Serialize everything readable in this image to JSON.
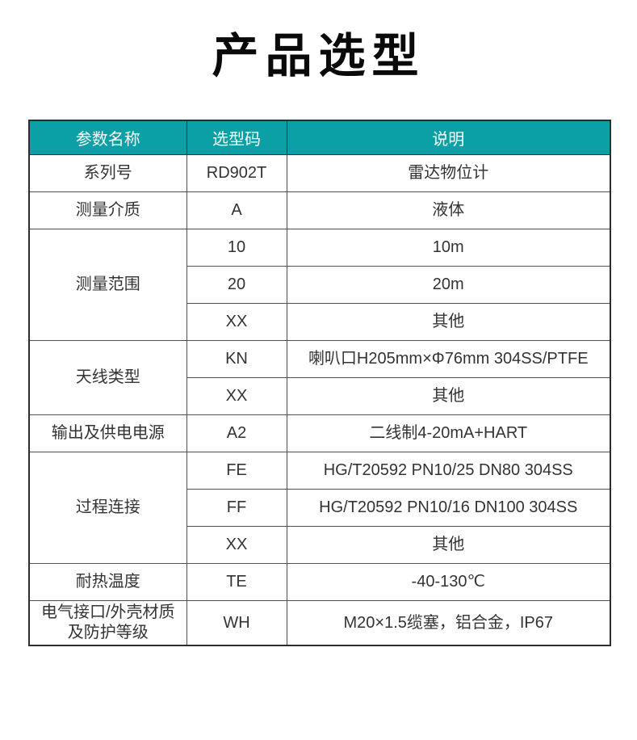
{
  "page": {
    "title": "产品选型"
  },
  "colors": {
    "accent_teal": "#0BA0A6",
    "header_text": "#FFFFFF",
    "body_text": "#333333",
    "grid_line": "#4F4F4F",
    "outer_border": "#2D2D2D",
    "title_color": "#0A0A0A",
    "background": "#FFFFFF"
  },
  "table": {
    "headers": [
      "参数名称",
      "选型码",
      "说明"
    ],
    "groups": [
      {
        "param": "系列号",
        "options": [
          {
            "code": "RD902T",
            "desc": "雷达物位计"
          }
        ]
      },
      {
        "param": "测量介质",
        "options": [
          {
            "code": "A",
            "desc": "液体"
          }
        ]
      },
      {
        "param": "测量范围",
        "options": [
          {
            "code": "10",
            "desc": "10m"
          },
          {
            "code": "20",
            "desc": "20m"
          },
          {
            "code": "XX",
            "desc": "其他"
          }
        ]
      },
      {
        "param": "天线类型",
        "options": [
          {
            "code": "KN",
            "desc": "喇叭口H205mm×Φ76mm 304SS/PTFE"
          },
          {
            "code": "XX",
            "desc": "其他"
          }
        ]
      },
      {
        "param": "输出及供电电源",
        "options": [
          {
            "code": "A2",
            "desc": "二线制4-20mA+HART"
          }
        ]
      },
      {
        "param": "过程连接",
        "options": [
          {
            "code": "FE",
            "desc": "HG/T20592 PN10/25 DN80 304SS"
          },
          {
            "code": "FF",
            "desc": "HG/T20592 PN10/16 DN100 304SS"
          },
          {
            "code": "XX",
            "desc": "其他"
          }
        ]
      },
      {
        "param": "耐热温度",
        "options": [
          {
            "code": "TE",
            "desc": "-40-130℃"
          }
        ]
      },
      {
        "param": "电气接口/外壳材质及防护等级",
        "options": [
          {
            "code": "WH",
            "desc": "M20×1.5缆塞，铝合金，IP67"
          }
        ]
      }
    ]
  }
}
